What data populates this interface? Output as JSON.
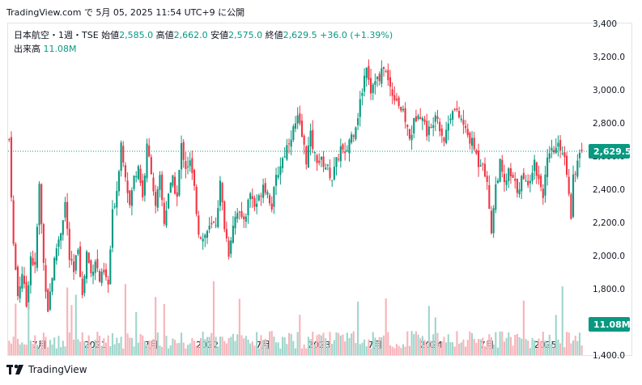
{
  "header": {
    "text": "TradingView.com で 5月 05, 2025 11:54 UTC+9 に公開"
  },
  "legend": {
    "symbol": "日本航空・1週・TSE",
    "open_label": "始値",
    "open": "2,585.0",
    "high_label": "高値",
    "high": "2,662.0",
    "low_label": "安値",
    "low": "2,575.0",
    "close_label": "終値",
    "close": "2,629.5",
    "change": "+36.0 (+1.39%)",
    "volume_label": "出来高",
    "volume": "11.08M"
  },
  "footer": {
    "brand": "TradingView"
  },
  "colors": {
    "up": "#089981",
    "down": "#f23645",
    "up_volume": "#9fd6cc",
    "down_volume": "#f7b4ba",
    "axis_text": "#131722",
    "border": "#e0e3eb"
  },
  "chart_data": {
    "type": "candlestick",
    "y_ticks": [
      "1,400.0",
      "1,600.0",
      "1,800.0",
      "2,000.0",
      "2,200.0",
      "2,400.0",
      "2,600.0",
      "2,800.0",
      "3,000.0",
      "3,200.0",
      "3,400"
    ],
    "ylim": [
      1400,
      3400
    ],
    "x_ticks": [
      {
        "label": "7月",
        "week": 14
      },
      {
        "label": "2021",
        "week": 40
      },
      {
        "label": "7月",
        "week": 66
      },
      {
        "label": "2022",
        "week": 92
      },
      {
        "label": "7月",
        "week": 118
      },
      {
        "label": "2023",
        "week": 144
      },
      {
        "label": "7月",
        "week": 170
      },
      {
        "label": "2024",
        "week": 196
      },
      {
        "label": "7月",
        "week": 222
      },
      {
        "label": "2025",
        "week": 249
      }
    ],
    "last_price": {
      "label": "2,629.5",
      "value": 2629.5
    },
    "last_volume": {
      "label": "11.08M"
    },
    "weeks": 267,
    "close_path": [
      [
        0,
        2700
      ],
      [
        2,
        2060
      ],
      [
        4,
        1760
      ],
      [
        6,
        1900
      ],
      [
        8,
        1700
      ],
      [
        10,
        2000
      ],
      [
        12,
        1920
      ],
      [
        14,
        2420
      ],
      [
        16,
        1950
      ],
      [
        18,
        1680
      ],
      [
        20,
        1880
      ],
      [
        22,
        2050
      ],
      [
        24,
        2150
      ],
      [
        26,
        2320
      ],
      [
        28,
        1980
      ],
      [
        30,
        1890
      ],
      [
        32,
        2060
      ],
      [
        34,
        1750
      ],
      [
        36,
        2020
      ],
      [
        38,
        1890
      ],
      [
        40,
        1980
      ],
      [
        42,
        1850
      ],
      [
        44,
        1890
      ],
      [
        46,
        1820
      ],
      [
        48,
        2250
      ],
      [
        50,
        2400
      ],
      [
        52,
        2680
      ],
      [
        54,
        2500
      ],
      [
        56,
        2300
      ],
      [
        58,
        2470
      ],
      [
        60,
        2550
      ],
      [
        62,
        2350
      ],
      [
        64,
        2650
      ],
      [
        66,
        2520
      ],
      [
        68,
        2280
      ],
      [
        70,
        2460
      ],
      [
        72,
        2200
      ],
      [
        74,
        2380
      ],
      [
        76,
        2450
      ],
      [
        78,
        2350
      ],
      [
        80,
        2660
      ],
      [
        82,
        2540
      ],
      [
        84,
        2560
      ],
      [
        86,
        2400
      ],
      [
        88,
        2150
      ],
      [
        90,
        2100
      ],
      [
        92,
        2150
      ],
      [
        94,
        2170
      ],
      [
        96,
        2200
      ],
      [
        98,
        2430
      ],
      [
        100,
        2180
      ],
      [
        102,
        2020
      ],
      [
        104,
        2200
      ],
      [
        106,
        2280
      ],
      [
        108,
        2200
      ],
      [
        110,
        2260
      ],
      [
        112,
        2380
      ],
      [
        114,
        2300
      ],
      [
        116,
        2340
      ],
      [
        118,
        2440
      ],
      [
        120,
        2380
      ],
      [
        122,
        2300
      ],
      [
        124,
        2460
      ],
      [
        126,
        2550
      ],
      [
        128,
        2620
      ],
      [
        130,
        2700
      ],
      [
        132,
        2760
      ],
      [
        134,
        2820
      ],
      [
        136,
        2720
      ],
      [
        138,
        2580
      ],
      [
        140,
        2720
      ],
      [
        142,
        2600
      ],
      [
        144,
        2570
      ],
      [
        146,
        2560
      ],
      [
        148,
        2520
      ],
      [
        150,
        2470
      ],
      [
        152,
        2560
      ],
      [
        154,
        2650
      ],
      [
        156,
        2590
      ],
      [
        158,
        2700
      ],
      [
        160,
        2750
      ],
      [
        162,
        2850
      ],
      [
        164,
        3000
      ],
      [
        166,
        3160
      ],
      [
        168,
        3000
      ],
      [
        170,
        3080
      ],
      [
        172,
        3050
      ],
      [
        174,
        3150
      ],
      [
        176,
        3050
      ],
      [
        178,
        2980
      ],
      [
        180,
        2950
      ],
      [
        182,
        2880
      ],
      [
        184,
        2820
      ],
      [
        186,
        2700
      ],
      [
        188,
        2800
      ],
      [
        190,
        2880
      ],
      [
        192,
        2830
      ],
      [
        194,
        2750
      ],
      [
        196,
        2760
      ],
      [
        198,
        2880
      ],
      [
        200,
        2780
      ],
      [
        202,
        2700
      ],
      [
        204,
        2800
      ],
      [
        206,
        2900
      ],
      [
        208,
        2850
      ],
      [
        210,
        2820
      ],
      [
        212,
        2750
      ],
      [
        214,
        2700
      ],
      [
        216,
        2650
      ],
      [
        218,
        2560
      ],
      [
        220,
        2580
      ],
      [
        222,
        2420
      ],
      [
        224,
        2160
      ],
      [
        226,
        2420
      ],
      [
        228,
        2550
      ],
      [
        230,
        2420
      ],
      [
        232,
        2500
      ],
      [
        234,
        2450
      ],
      [
        236,
        2400
      ],
      [
        238,
        2460
      ],
      [
        240,
        2430
      ],
      [
        242,
        2480
      ],
      [
        244,
        2560
      ],
      [
        246,
        2460
      ],
      [
        248,
        2380
      ],
      [
        250,
        2560
      ],
      [
        252,
        2620
      ],
      [
        254,
        2640
      ],
      [
        256,
        2660
      ],
      [
        258,
        2600
      ],
      [
        260,
        2400
      ],
      [
        261,
        2250
      ],
      [
        262,
        2480
      ],
      [
        264,
        2560
      ],
      [
        266,
        2629.5
      ]
    ]
  }
}
